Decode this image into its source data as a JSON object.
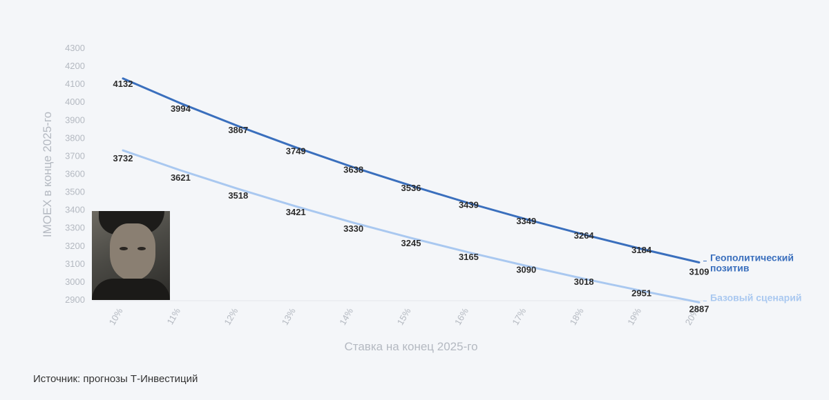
{
  "chart_data": {
    "type": "line",
    "xlabel": "Ставка на конец 2025-го",
    "ylabel": "IMOEX в конце 2025-го",
    "categories": [
      "10%",
      "11%",
      "12%",
      "13%",
      "14%",
      "15%",
      "16%",
      "17%",
      "18%",
      "19%",
      "20%"
    ],
    "yticks": [
      2900,
      3000,
      3100,
      3200,
      3300,
      3400,
      3500,
      3600,
      3700,
      3800,
      3900,
      4000,
      4100,
      4200,
      4300
    ],
    "ylim": [
      2900,
      4300
    ],
    "grid": false,
    "legend": "right, inline at line ends",
    "series": [
      {
        "name": "Геополитический позитив",
        "legend_lines": [
          "Геополитический",
          "позитив"
        ],
        "color": "#3a6fbd",
        "values": [
          4132,
          3994,
          3867,
          3749,
          3638,
          3536,
          3439,
          3349,
          3264,
          3184,
          3109
        ]
      },
      {
        "name": "Базовый сценарий",
        "legend_lines": [
          "Базовый сценарий"
        ],
        "color": "#a9c8f0",
        "values": [
          3732,
          3621,
          3518,
          3421,
          3330,
          3245,
          3165,
          3090,
          3018,
          2951,
          2887
        ]
      }
    ]
  },
  "source": "Источник: прогнозы Т-Инвестиций"
}
